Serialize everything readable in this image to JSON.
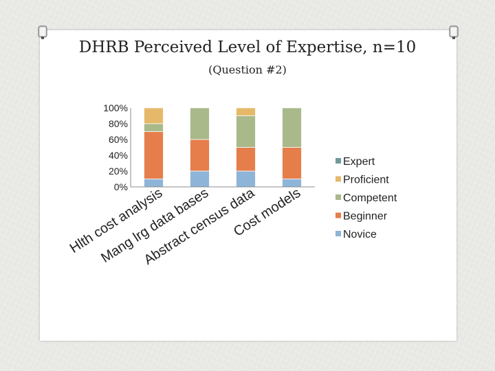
{
  "slide": {
    "title": "DHRB Perceived Level of Expertise, n=10",
    "subtitle": "(Question #2)"
  },
  "chart_data": {
    "type": "bar",
    "stacked": true,
    "percent": true,
    "categories": [
      "Hlth cost analysis",
      "Mang lrg data bases",
      "Abstract census data",
      "Cost models"
    ],
    "ylim": [
      0,
      100
    ],
    "yticks": [
      "0%",
      "20%",
      "40%",
      "60%",
      "80%",
      "100%"
    ],
    "series": [
      {
        "name": "Novice",
        "color": "#8eb4d8",
        "values": [
          10,
          20,
          20,
          10
        ]
      },
      {
        "name": "Beginner",
        "color": "#e57e4b",
        "values": [
          60,
          40,
          30,
          40
        ]
      },
      {
        "name": "Competent",
        "color": "#a9b98a",
        "values": [
          10,
          40,
          40,
          50
        ]
      },
      {
        "name": "Proficient",
        "color": "#e5b969",
        "values": [
          20,
          0,
          10,
          0
        ]
      },
      {
        "name": "Expert",
        "color": "#6f9a9a",
        "values": [
          0,
          0,
          0,
          0
        ]
      }
    ],
    "legend_order": [
      "Expert",
      "Proficient",
      "Competent",
      "Beginner",
      "Novice"
    ],
    "legend_position": "right",
    "grid": false
  }
}
